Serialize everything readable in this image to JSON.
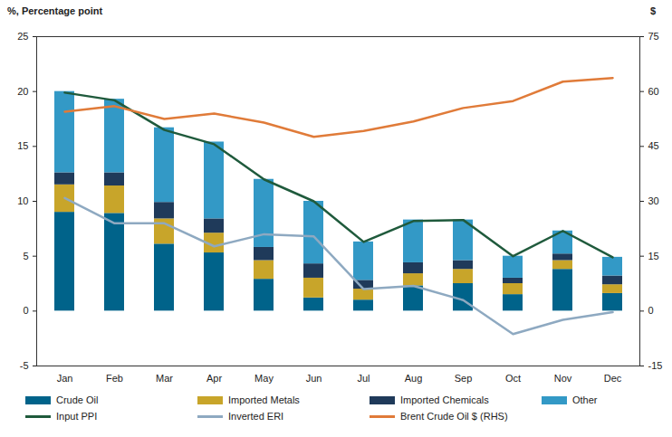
{
  "chart_data": {
    "type": "bar",
    "stacked": true,
    "grid": false,
    "legend": "bottom",
    "y_label": "%, Percentage point",
    "y2_label": "$",
    "categories": [
      "Jan",
      "Feb",
      "Mar",
      "Apr",
      "May",
      "Jun",
      "Jul",
      "Aug",
      "Sep",
      "Oct",
      "Nov",
      "Dec"
    ],
    "ylim": [
      -5,
      25
    ],
    "yticks": [
      -5,
      0,
      5,
      10,
      15,
      20,
      25
    ],
    "y2lim": [
      -15,
      75
    ],
    "y2ticks": [
      -15,
      0,
      15,
      30,
      45,
      60,
      75
    ],
    "series": [
      {
        "name": "Crude Oil",
        "type": "bar",
        "color": "#00638a",
        "values": [
          9.0,
          8.9,
          6.1,
          5.3,
          2.9,
          1.2,
          1.0,
          2.3,
          2.5,
          1.5,
          3.8,
          1.6
        ]
      },
      {
        "name": "Imported Metals",
        "type": "bar",
        "color": "#c8a52a",
        "values": [
          2.5,
          2.5,
          2.3,
          1.8,
          1.7,
          1.8,
          1.0,
          1.1,
          1.3,
          1.0,
          0.8,
          0.8
        ]
      },
      {
        "name": "Imported Chemicals",
        "type": "bar",
        "color": "#1f3a5a",
        "values": [
          1.1,
          1.2,
          1.5,
          1.3,
          1.2,
          1.3,
          0.8,
          1.0,
          0.8,
          0.5,
          0.6,
          0.8
        ]
      },
      {
        "name": "Other",
        "type": "bar",
        "color": "#3399c6",
        "values": [
          7.4,
          6.7,
          6.8,
          7.0,
          6.2,
          5.7,
          3.5,
          3.9,
          3.7,
          2.0,
          2.1,
          1.7
        ]
      },
      {
        "name": "Input PPI",
        "type": "line",
        "color": "#1f5a3c",
        "values": [
          19.9,
          19.2,
          16.5,
          15.2,
          12.0,
          10.0,
          6.3,
          8.2,
          8.3,
          5.0,
          7.3,
          4.9
        ]
      },
      {
        "name": "Inverted ERI",
        "type": "line",
        "color": "#8ea9c1",
        "values": [
          10.3,
          8.0,
          8.0,
          5.9,
          7.0,
          6.8,
          2.0,
          2.3,
          1.0,
          -2.1,
          -0.8,
          -0.1
        ]
      },
      {
        "name": "Brent Crude Oil $ (RHS)",
        "type": "line",
        "axis": "y2",
        "color": "#e07b39",
        "values": [
          54.5,
          56.0,
          52.5,
          54.0,
          51.5,
          47.6,
          49.2,
          51.8,
          55.5,
          57.4,
          62.7,
          63.7
        ]
      }
    ]
  }
}
